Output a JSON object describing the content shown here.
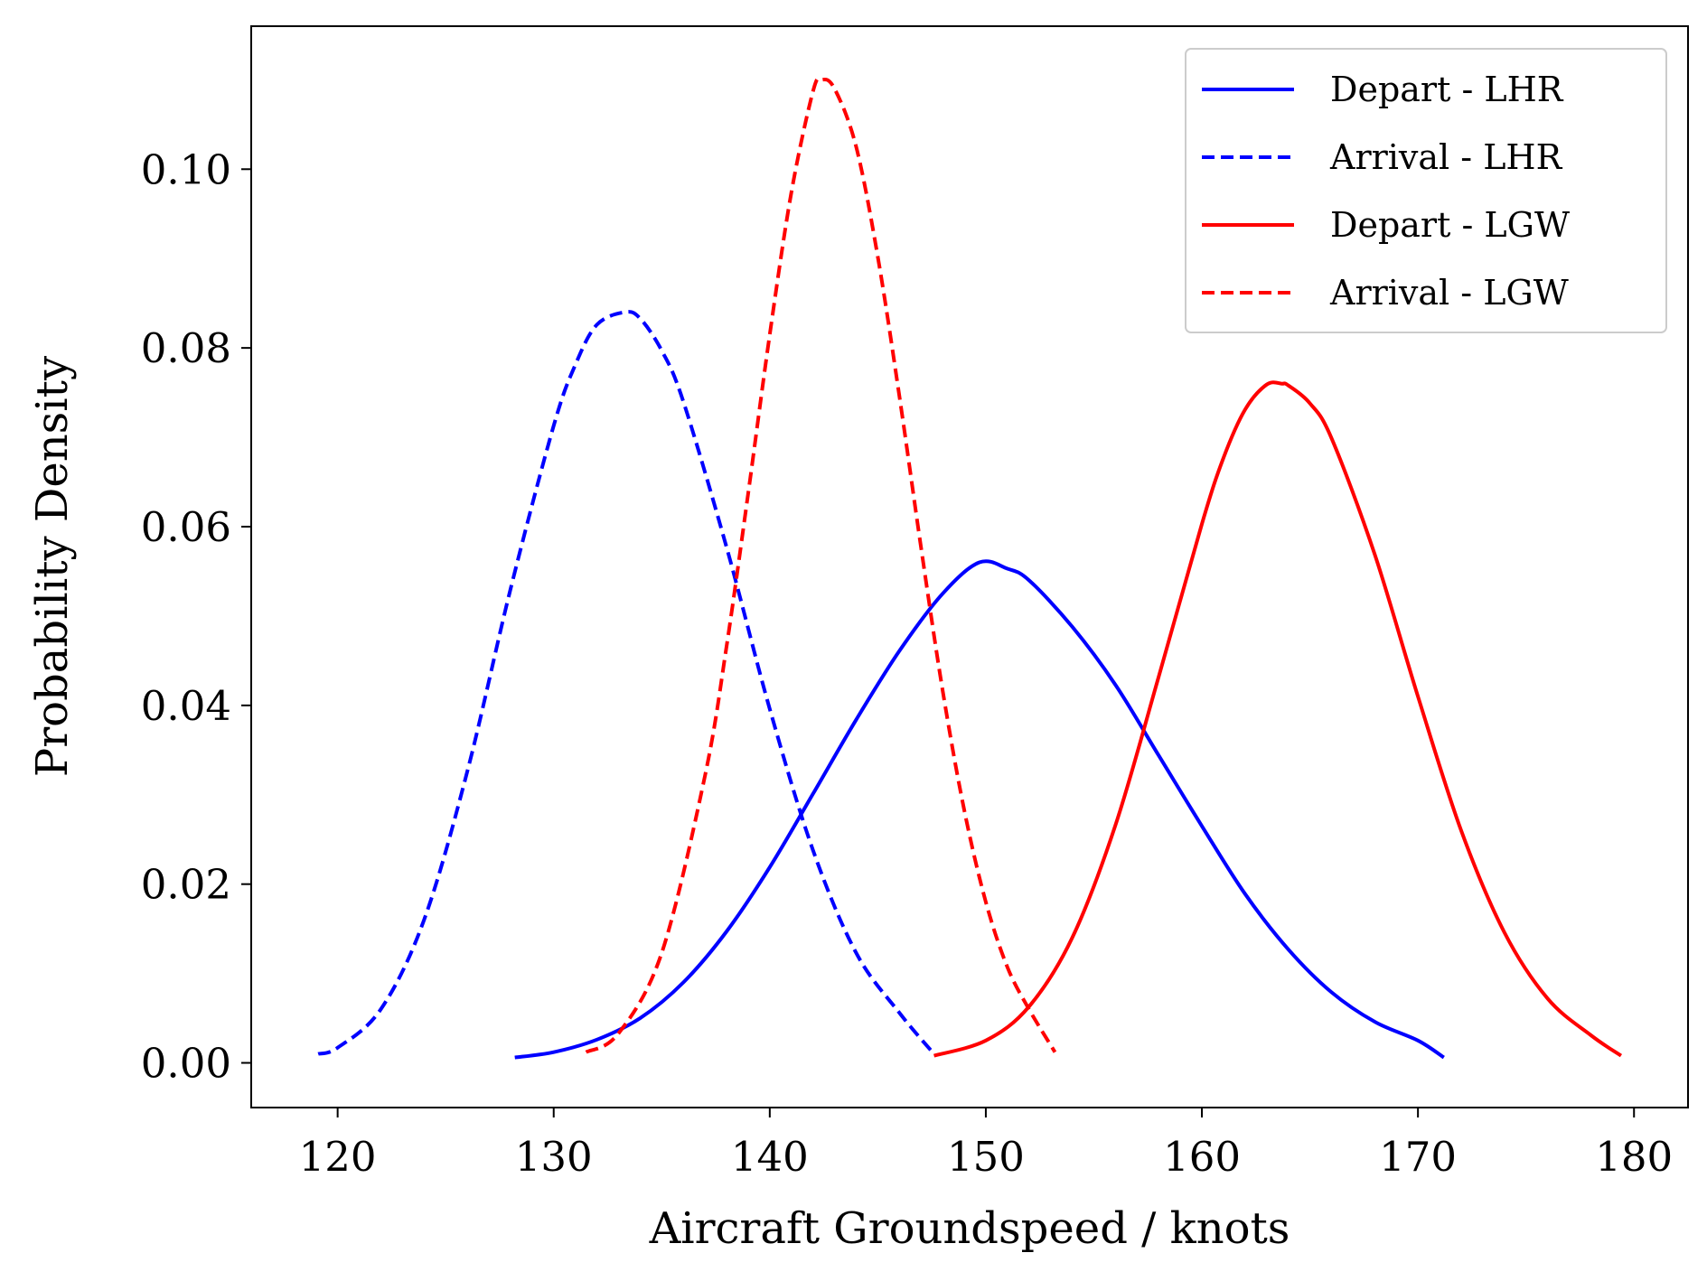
{
  "chart_data": {
    "type": "line",
    "title": "",
    "xlabel": "Aircraft Groundspeed / knots",
    "ylabel": "Probability Density",
    "xlim": [
      116,
      182.5
    ],
    "ylim": [
      -0.005,
      0.116
    ],
    "xticks": [
      {
        "value": 120,
        "label": "120"
      },
      {
        "value": 130,
        "label": "130"
      },
      {
        "value": 140,
        "label": "140"
      },
      {
        "value": 150,
        "label": "150"
      },
      {
        "value": 160,
        "label": "160"
      },
      {
        "value": 170,
        "label": "170"
      },
      {
        "value": 180,
        "label": "180"
      }
    ],
    "yticks": [
      {
        "value": 0.0,
        "label": "0.00"
      },
      {
        "value": 0.02,
        "label": "0.02"
      },
      {
        "value": 0.04,
        "label": "0.04"
      },
      {
        "value": 0.06,
        "label": "0.06"
      },
      {
        "value": 0.08,
        "label": "0.08"
      },
      {
        "value": 0.1,
        "label": "0.10"
      }
    ],
    "grid": false,
    "legend_position": "top-right",
    "series": [
      {
        "name": "Depart - LHR",
        "color": "#0000ff",
        "dash": "solid",
        "x": [
          128.2,
          130,
          132,
          134,
          136,
          138,
          140,
          142,
          144,
          146,
          148,
          149.7,
          151,
          152,
          154,
          156,
          158,
          160,
          162,
          164,
          166,
          168,
          170,
          171.2
        ],
        "y": [
          0.0006,
          0.0012,
          0.0026,
          0.005,
          0.009,
          0.0147,
          0.0219,
          0.0301,
          0.0384,
          0.0461,
          0.0525,
          0.056,
          0.0553,
          0.054,
          0.0488,
          0.0423,
          0.0344,
          0.0265,
          0.0189,
          0.0127,
          0.0079,
          0.0046,
          0.0025,
          0.0006
        ]
      },
      {
        "name": "Arrival - LHR",
        "color": "#0000ff",
        "dash": "dashed",
        "x": [
          119.1,
          120,
          122,
          124,
          126,
          128,
          130,
          131,
          132,
          133.3,
          134,
          135,
          136,
          138,
          140,
          142,
          144,
          146,
          147.6
        ],
        "y": [
          0.001,
          0.0017,
          0.006,
          0.016,
          0.0326,
          0.053,
          0.0713,
          0.0781,
          0.0826,
          0.084,
          0.0833,
          0.0797,
          0.074,
          0.0577,
          0.0396,
          0.0238,
          0.0123,
          0.0056,
          0.001
        ]
      },
      {
        "name": "Depart - LGW",
        "color": "#ff0000",
        "dash": "solid",
        "x": [
          147.6,
          150,
          152,
          154,
          156,
          158,
          160,
          161,
          162,
          163,
          163.7,
          164,
          165,
          166,
          168,
          170,
          172,
          174,
          176,
          178,
          179.4
        ],
        "y": [
          0.0008,
          0.0025,
          0.0063,
          0.014,
          0.0266,
          0.0432,
          0.0603,
          0.0677,
          0.0731,
          0.0759,
          0.076,
          0.0758,
          0.0738,
          0.0699,
          0.0569,
          0.041,
          0.026,
          0.0146,
          0.0072,
          0.0031,
          0.0008
        ]
      },
      {
        "name": "Arrival - LGW",
        "color": "#ff0000",
        "dash": "dashed",
        "x": [
          131.5,
          133,
          135,
          137,
          138,
          139,
          140,
          141,
          142,
          142.4,
          143,
          144,
          145,
          146,
          147,
          148,
          149,
          150,
          151,
          152,
          153.2
        ],
        "y": [
          0.0012,
          0.0033,
          0.0123,
          0.0321,
          0.0466,
          0.0637,
          0.0815,
          0.0974,
          0.1087,
          0.11,
          0.109,
          0.1025,
          0.0902,
          0.0746,
          0.0577,
          0.0417,
          0.0283,
          0.018,
          0.0107,
          0.006,
          0.0012
        ]
      }
    ]
  }
}
